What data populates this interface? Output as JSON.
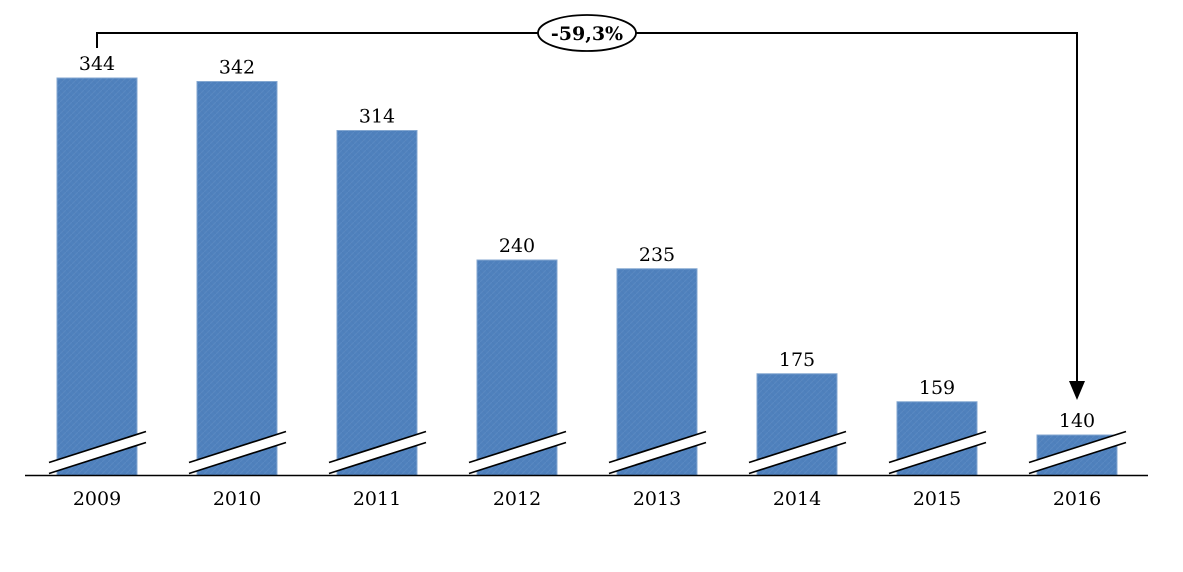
{
  "chart_data": {
    "type": "bar",
    "title": "",
    "xlabel": "",
    "ylabel": "",
    "categories": [
      "2009",
      "2010",
      "2011",
      "2012",
      "2013",
      "2014",
      "2015",
      "2016"
    ],
    "values": [
      344,
      342,
      314,
      240,
      235,
      175,
      159,
      140
    ],
    "legend": "none",
    "gridlines": false,
    "axis": {
      "x_axis_line": true,
      "y_axis_line": false,
      "break_marks_on_bars": true,
      "approx_baseline_value": 117
    },
    "annotation": {
      "text": "-59,3%",
      "shape": "ellipse-on-bracket",
      "from_category": "2009",
      "to_category": "2016",
      "arrow": "down-to-2016-bar"
    },
    "colors": {
      "bar_fill": "#4F81BD",
      "bar_border": "#84A7D0",
      "hatch_light": "#6D99CB",
      "hatch_dark": "#446FA2",
      "line": "#000000",
      "text": "#000000",
      "background": "#FFFFFF"
    }
  }
}
